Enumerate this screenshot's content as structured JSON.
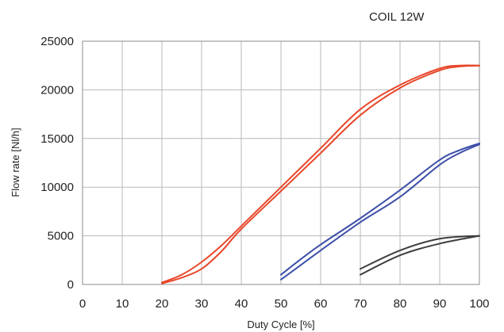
{
  "chart_data": {
    "type": "line",
    "title": "COIL 12W",
    "xlabel": "Duty Cycle [%]",
    "ylabel": "Flow rate [Nl/h]",
    "xlim": [
      0,
      100
    ],
    "ylim": [
      0,
      25000
    ],
    "xticks": [
      "0",
      "10",
      "20",
      "30",
      "40",
      "50",
      "60",
      "70",
      "80",
      "90",
      "100"
    ],
    "yticks": [
      "0",
      "5000",
      "10000",
      "15000",
      "20000",
      "25000"
    ],
    "grid": true,
    "series": [
      {
        "color": "#e8472a",
        "x": [
          20,
          25,
          30,
          35,
          40,
          50,
          60,
          70,
          80,
          90,
          95,
          100
        ],
        "y": [
          200,
          1000,
          2300,
          4000,
          6000,
          10000,
          14000,
          18000,
          20500,
          22200,
          22500,
          22500
        ]
      },
      {
        "color": "#e8472a",
        "x": [
          20,
          25,
          30,
          35,
          40,
          50,
          60,
          70,
          80,
          90,
          95,
          100
        ],
        "y": [
          100,
          700,
          1600,
          3400,
          5700,
          9600,
          13500,
          17400,
          20200,
          22000,
          22400,
          22500
        ]
      },
      {
        "color": "#3d4fa8",
        "x": [
          50,
          55,
          60,
          70,
          80,
          90,
          95,
          100
        ],
        "y": [
          1000,
          2600,
          4100,
          6800,
          9700,
          12800,
          13800,
          14500
        ]
      },
      {
        "color": "#3d4fa8",
        "x": [
          50,
          55,
          60,
          70,
          80,
          90,
          95,
          100
        ],
        "y": [
          500,
          2000,
          3500,
          6400,
          9000,
          12300,
          13500,
          14400
        ]
      },
      {
        "color": "#3e3e3e",
        "x": [
          70,
          80,
          90,
          100
        ],
        "y": [
          1600,
          3500,
          4700,
          5000
        ]
      },
      {
        "color": "#3e3e3e",
        "x": [
          70,
          80,
          90,
          100
        ],
        "y": [
          1000,
          3000,
          4200,
          5000
        ]
      }
    ]
  }
}
